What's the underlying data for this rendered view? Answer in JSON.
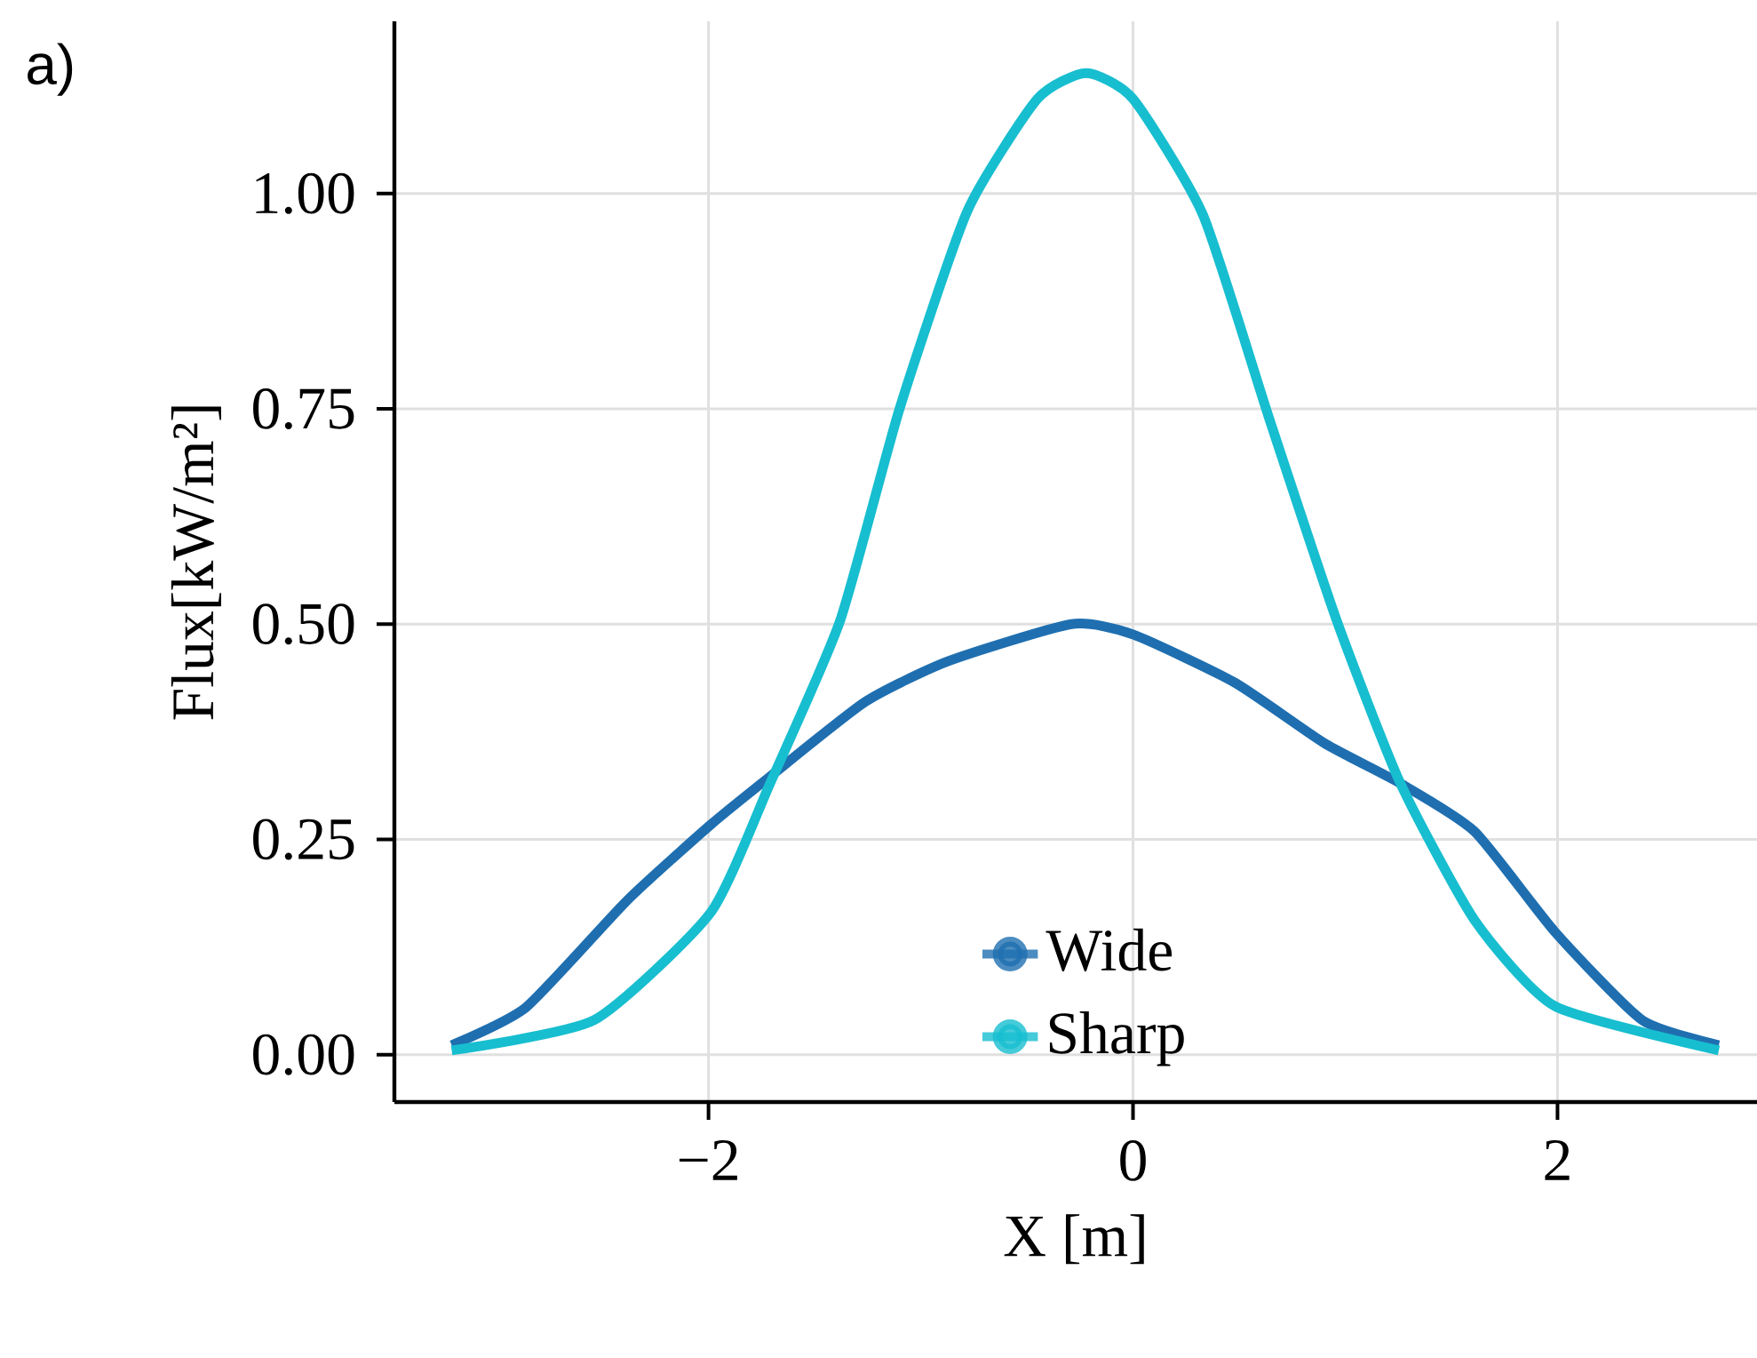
{
  "chart_data": {
    "type": "line",
    "xlabel": "X [m]",
    "ylabel": "Flux[kW/m²]",
    "annotations": [
      "a)"
    ],
    "xlim": [
      -3.48,
      2.94
    ],
    "ylim": [
      -0.055,
      1.2
    ],
    "xticks": [
      {
        "value": -2,
        "label": "−2"
      },
      0,
      2
    ],
    "yticks": [
      {
        "value": 0,
        "label": "0.00"
      },
      {
        "value": 0.25,
        "label": "0.25"
      },
      {
        "value": 0.5,
        "label": "0.50"
      },
      {
        "value": 0.75,
        "label": "0.75"
      },
      {
        "value": 1,
        "label": "1.00"
      }
    ],
    "grid": true,
    "legend": "bottom",
    "series": [
      {
        "name": "Wide",
        "color": "#1f6fb0",
        "x": [
          -3.21,
          -2.86,
          -2.38,
          -1.99,
          -1.71,
          -1.26,
          -0.87,
          -0.29,
          0.0,
          0.48,
          0.9,
          1.26,
          1.61,
          1.99,
          2.4,
          2.76
        ],
        "values": [
          0.011,
          0.055,
          0.18,
          0.267,
          0.323,
          0.41,
          0.457,
          0.5,
          0.488,
          0.432,
          0.362,
          0.315,
          0.259,
          0.142,
          0.04,
          0.011
        ]
      },
      {
        "name": "Sharp",
        "color": "#17becf",
        "x": [
          -3.21,
          -2.54,
          -1.99,
          -1.71,
          -1.38,
          -1.1,
          -0.78,
          -0.45,
          -0.22,
          0.0,
          0.33,
          0.64,
          0.96,
          1.26,
          1.61,
          1.99,
          2.76
        ],
        "values": [
          0.005,
          0.04,
          0.165,
          0.315,
          0.504,
          0.75,
          0.98,
          1.11,
          1.14,
          1.11,
          0.975,
          0.74,
          0.504,
          0.315,
          0.156,
          0.056,
          0.005
        ]
      }
    ]
  }
}
